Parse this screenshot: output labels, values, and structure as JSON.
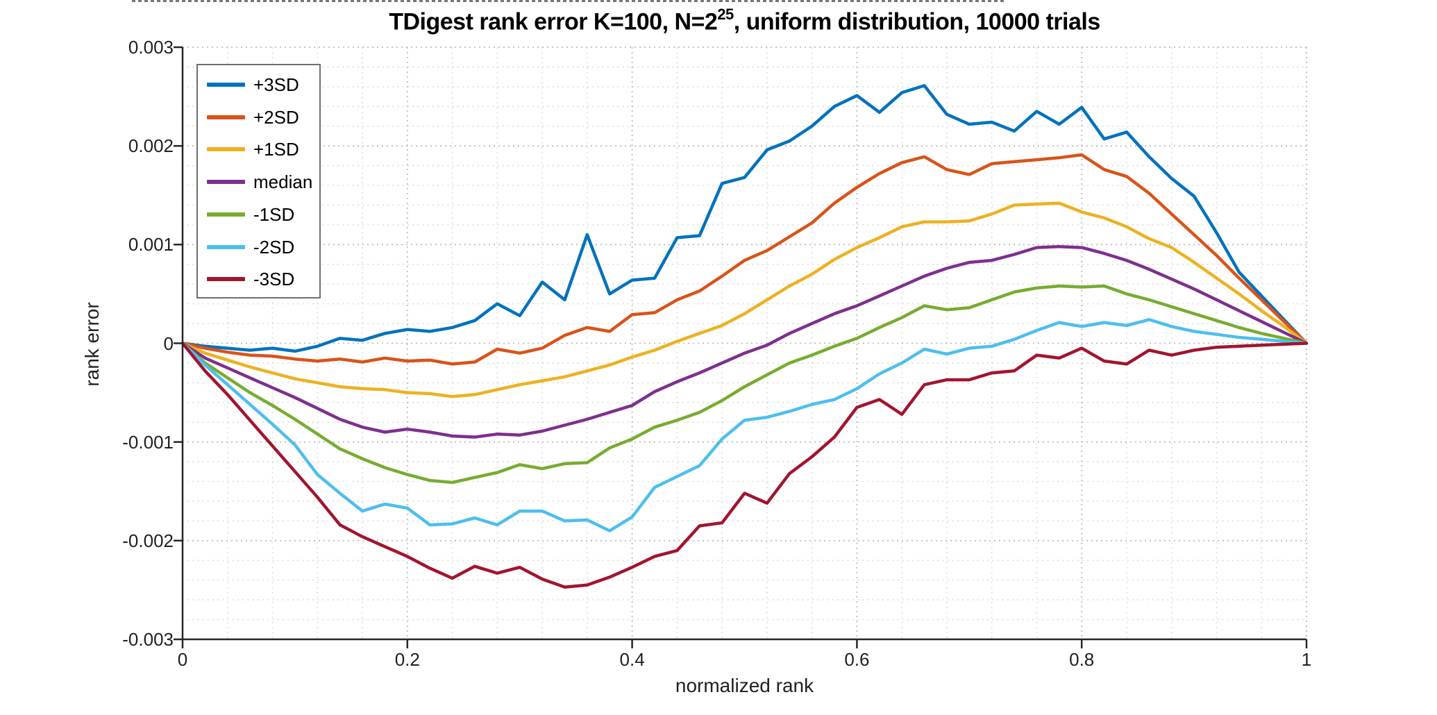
{
  "figure": {
    "title": {
      "prefix": "TDigest rank error K=100, N=2",
      "superscript": "25",
      "suffix": ", uniform distribution, 10000 trials"
    },
    "x_axis": {
      "label": "normalized rank",
      "ticks": [
        "0",
        "0.2",
        "0.4",
        "0.6",
        "0.8",
        "1"
      ]
    },
    "y_axis": {
      "label": "rank error",
      "ticks": [
        "0.003",
        "0.002",
        "0.001",
        "0",
        "-0.001",
        "-0.002",
        "-0.003"
      ]
    },
    "colors": {
      "axis": "#262626",
      "grid_major": "#bcbcbc",
      "grid_minor": "#d9d9d9",
      "background": "#ffffff",
      "legend_border": "#6e6e6e"
    }
  },
  "chart_data": {
    "type": "line",
    "title": "TDigest rank error K=100, N=2^25, uniform distribution, 10000 trials",
    "xlabel": "normalized rank",
    "ylabel": "rank error",
    "xlim": [
      0,
      1
    ],
    "ylim": [
      -0.003,
      0.003
    ],
    "x_ticks": [
      0,
      0.2,
      0.4,
      0.6,
      0.8,
      1
    ],
    "y_ticks": [
      0.003,
      0.002,
      0.001,
      0,
      -0.001,
      -0.002,
      -0.003
    ],
    "grid": "major and minor dotted, minor x step 0.04, minor y step 0.0002",
    "legend_position": "upper left",
    "x_start": 0,
    "x_step": 0.02,
    "series": [
      {
        "name": "+3SD",
        "color": "#0072BD",
        "values": [
          0,
          -3e-05,
          -5e-05,
          -7e-05,
          -5e-05,
          -8e-05,
          -3e-05,
          5e-05,
          3e-05,
          0.0001,
          0.00014,
          0.00012,
          0.00016,
          0.00023,
          0.0004,
          0.00028,
          0.00062,
          0.00044,
          0.0011,
          0.0005,
          0.00064,
          0.00066,
          0.00107,
          0.00109,
          0.00162,
          0.00168,
          0.00196,
          0.00205,
          0.0022,
          0.0024,
          0.00251,
          0.00234,
          0.00254,
          0.00261,
          0.00232,
          0.00222,
          0.00224,
          0.00215,
          0.00235,
          0.00222,
          0.00239,
          0.00207,
          0.00214,
          0.00189,
          0.00167,
          0.00149,
          0.00112,
          0.00072,
          0.00048,
          0.00024,
          0
        ]
      },
      {
        "name": "+2SD",
        "color": "#D95319",
        "values": [
          0,
          -5e-05,
          -9e-05,
          -0.00012,
          -0.00013,
          -0.00016,
          -0.00018,
          -0.00016,
          -0.00019,
          -0.00015,
          -0.00018,
          -0.00017,
          -0.00021,
          -0.00019,
          -6e-05,
          -0.0001,
          -5e-05,
          8e-05,
          0.00016,
          0.00012,
          0.00029,
          0.00031,
          0.00044,
          0.00053,
          0.00068,
          0.00084,
          0.00094,
          0.00108,
          0.00122,
          0.00142,
          0.00158,
          0.00172,
          0.00183,
          0.00189,
          0.00176,
          0.00171,
          0.00182,
          0.00184,
          0.00186,
          0.00188,
          0.00191,
          0.00176,
          0.00169,
          0.00152,
          0.00131,
          0.0011,
          0.00089,
          0.00066,
          0.00044,
          0.00022,
          0
        ]
      },
      {
        "name": "+1SD",
        "color": "#EDB120",
        "values": [
          0,
          -0.0001,
          -0.00017,
          -0.00024,
          -0.0003,
          -0.00036,
          -0.0004,
          -0.00044,
          -0.00046,
          -0.00047,
          -0.0005,
          -0.00051,
          -0.00054,
          -0.00052,
          -0.00047,
          -0.00042,
          -0.00038,
          -0.00034,
          -0.00028,
          -0.00022,
          -0.00014,
          -7e-05,
          2e-05,
          0.0001,
          0.00018,
          0.0003,
          0.00044,
          0.00058,
          0.0007,
          0.00085,
          0.00097,
          0.00107,
          0.00118,
          0.00123,
          0.00123,
          0.00124,
          0.00131,
          0.0014,
          0.00141,
          0.00142,
          0.00133,
          0.00127,
          0.00118,
          0.00106,
          0.00097,
          0.00082,
          0.00066,
          0.0005,
          0.00033,
          0.00017,
          0
        ]
      },
      {
        "name": "median",
        "color": "#7E2F8E",
        "values": [
          0,
          -0.00015,
          -0.00025,
          -0.00035,
          -0.00045,
          -0.00055,
          -0.00066,
          -0.00077,
          -0.00085,
          -0.0009,
          -0.00087,
          -0.0009,
          -0.00094,
          -0.00095,
          -0.00092,
          -0.00093,
          -0.00089,
          -0.00083,
          -0.00077,
          -0.0007,
          -0.00063,
          -0.00049,
          -0.00039,
          -0.0003,
          -0.0002,
          -0.0001,
          -2e-05,
          0.0001,
          0.0002,
          0.0003,
          0.00038,
          0.00048,
          0.00058,
          0.00068,
          0.00076,
          0.00082,
          0.00084,
          0.0009,
          0.00097,
          0.00098,
          0.00097,
          0.00091,
          0.00084,
          0.00075,
          0.00065,
          0.00055,
          0.00044,
          0.00033,
          0.00022,
          0.00011,
          0
        ]
      },
      {
        "name": "-1SD",
        "color": "#77AC30",
        "values": [
          0,
          -0.0002,
          -0.00035,
          -0.0005,
          -0.00063,
          -0.00077,
          -0.00092,
          -0.00107,
          -0.00117,
          -0.00126,
          -0.00133,
          -0.00139,
          -0.00141,
          -0.00136,
          -0.00131,
          -0.00123,
          -0.00127,
          -0.00122,
          -0.00121,
          -0.00106,
          -0.00097,
          -0.00085,
          -0.00078,
          -0.0007,
          -0.00058,
          -0.00044,
          -0.00032,
          -0.0002,
          -0.00012,
          -3e-05,
          5e-05,
          0.00016,
          0.00026,
          0.00038,
          0.00034,
          0.00036,
          0.00044,
          0.00052,
          0.00056,
          0.00058,
          0.00057,
          0.00058,
          0.0005,
          0.00044,
          0.00037,
          0.0003,
          0.00023,
          0.00016,
          0.0001,
          5e-05,
          0
        ]
      },
      {
        "name": "-2SD",
        "color": "#4DBEEE",
        "values": [
          0,
          -0.00022,
          -0.00042,
          -0.00062,
          -0.00082,
          -0.00103,
          -0.00133,
          -0.00152,
          -0.0017,
          -0.00163,
          -0.00167,
          -0.00184,
          -0.00183,
          -0.00177,
          -0.00184,
          -0.0017,
          -0.0017,
          -0.0018,
          -0.00179,
          -0.0019,
          -0.00176,
          -0.00146,
          -0.00135,
          -0.00124,
          -0.00097,
          -0.00078,
          -0.00075,
          -0.00069,
          -0.00062,
          -0.00057,
          -0.00046,
          -0.00031,
          -0.0002,
          -6e-05,
          -0.00011,
          -5e-05,
          -3e-05,
          4e-05,
          0.00013,
          0.00021,
          0.00017,
          0.00021,
          0.00018,
          0.00024,
          0.00017,
          0.00012,
          9e-05,
          6e-05,
          4e-05,
          2e-05,
          0
        ]
      },
      {
        "name": "-3SD",
        "color": "#A2142F",
        "values": [
          0,
          -0.00028,
          -0.00052,
          -0.00078,
          -0.00104,
          -0.0013,
          -0.00156,
          -0.00184,
          -0.00196,
          -0.00206,
          -0.00216,
          -0.00228,
          -0.00238,
          -0.00226,
          -0.00233,
          -0.00227,
          -0.00239,
          -0.00247,
          -0.00245,
          -0.00237,
          -0.00227,
          -0.00216,
          -0.0021,
          -0.00185,
          -0.00182,
          -0.00152,
          -0.00162,
          -0.00132,
          -0.00115,
          -0.00095,
          -0.00065,
          -0.00057,
          -0.00072,
          -0.00042,
          -0.00037,
          -0.00037,
          -0.0003,
          -0.00028,
          -0.00012,
          -0.00015,
          -5e-05,
          -0.00018,
          -0.00021,
          -7e-05,
          -0.00012,
          -7e-05,
          -4e-05,
          -3e-05,
          -2e-05,
          -1e-05,
          0
        ]
      }
    ]
  }
}
